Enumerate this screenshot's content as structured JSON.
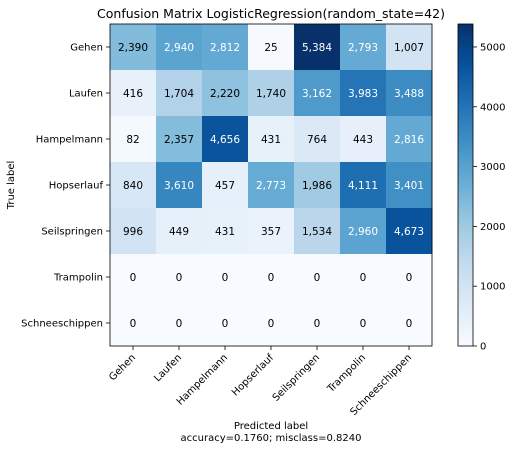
{
  "chart_data": {
    "type": "heatmap",
    "title": "Confusion Matrix LogisticRegression(random_state=42)",
    "xlabel": "Predicted label",
    "xlabel_note": "accuracy=0.1760; misclass=0.8240",
    "ylabel": "True label",
    "true_labels": [
      "Gehen",
      "Laufen",
      "Hampelmann",
      "Hopserlauf",
      "Seilspringen",
      "Trampolin",
      "Schneeschippen"
    ],
    "predicted_labels": [
      "Gehen",
      "Laufen",
      "Hampelmann",
      "Hopserlauf",
      "Seilspringen",
      "Trampolin",
      "Schneeschippen"
    ],
    "matrix": [
      [
        2390,
        2940,
        2812,
        25,
        5384,
        2793,
        1007
      ],
      [
        416,
        1704,
        2220,
        1740,
        3162,
        3983,
        3488
      ],
      [
        82,
        2357,
        4656,
        431,
        764,
        443,
        2816
      ],
      [
        840,
        3610,
        457,
        2773,
        1986,
        4111,
        3401
      ],
      [
        996,
        449,
        431,
        357,
        1534,
        2960,
        4673
      ],
      [
        0,
        0,
        0,
        0,
        0,
        0,
        0
      ],
      [
        0,
        0,
        0,
        0,
        0,
        0,
        0
      ]
    ],
    "value_labels": [
      [
        "2,390",
        "2,940",
        "2,812",
        "25",
        "5,384",
        "2,793",
        "1,007"
      ],
      [
        "416",
        "1,704",
        "2,220",
        "1,740",
        "3,162",
        "3,983",
        "3,488"
      ],
      [
        "82",
        "2,357",
        "4,656",
        "431",
        "764",
        "443",
        "2,816"
      ],
      [
        "840",
        "3,610",
        "457",
        "2,773",
        "1,986",
        "4,111",
        "3,401"
      ],
      [
        "996",
        "449",
        "431",
        "357",
        "1,534",
        "2,960",
        "4,673"
      ],
      [
        "0",
        "0",
        "0",
        "0",
        "0",
        "0",
        "0"
      ],
      [
        "0",
        "0",
        "0",
        "0",
        "0",
        "0",
        "0"
      ]
    ],
    "colormap": "Blues",
    "colorbar": {
      "range": [
        0,
        5384
      ],
      "ticks": [
        0,
        1000,
        2000,
        3000,
        4000,
        5000
      ],
      "tick_labels": [
        "0",
        "1000",
        "2000",
        "3000",
        "4000",
        "5000"
      ]
    },
    "grid": false,
    "text_threshold": 2692
  }
}
